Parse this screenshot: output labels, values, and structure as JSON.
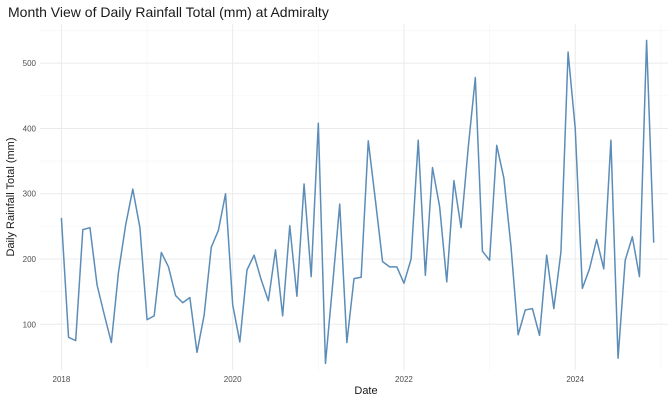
{
  "chart_data": {
    "type": "line",
    "title": "Month View of Daily Rainfall Total (mm) at Admiralty",
    "xlabel": "Date",
    "ylabel": "Daily Rainfall Total (mm)",
    "x_ticks": [
      "2018",
      "2020",
      "2022",
      "2024"
    ],
    "y_ticks": [
      100,
      200,
      300,
      400,
      500
    ],
    "xlim": [
      "2017-10",
      "2025-02"
    ],
    "ylim": [
      30,
      560
    ],
    "grid": true,
    "legend": "none",
    "line_color": "#5b8db8",
    "series": [
      {
        "x": [
          "2018-01",
          "2018-02",
          "2018-03",
          "2018-04",
          "2018-05",
          "2018-06",
          "2018-07",
          "2018-08",
          "2018-09",
          "2018-10",
          "2018-11",
          "2018-12",
          "2019-01",
          "2019-02",
          "2019-03",
          "2019-04",
          "2019-05",
          "2019-06",
          "2019-07",
          "2019-08",
          "2019-09",
          "2019-10",
          "2019-11",
          "2019-12",
          "2020-01",
          "2020-02",
          "2020-03",
          "2020-04",
          "2020-05",
          "2020-06",
          "2020-07",
          "2020-08",
          "2020-09",
          "2020-10",
          "2020-11",
          "2020-12",
          "2021-01",
          "2021-02",
          "2021-03",
          "2021-04",
          "2021-05",
          "2021-06",
          "2021-07",
          "2021-08",
          "2021-09",
          "2021-10",
          "2021-11",
          "2021-12",
          "2022-01",
          "2022-02",
          "2022-03",
          "2022-04",
          "2022-05",
          "2022-06",
          "2022-07",
          "2022-08",
          "2022-09",
          "2022-10",
          "2022-11",
          "2022-12",
          "2023-01",
          "2023-02",
          "2023-03",
          "2023-04",
          "2023-05",
          "2023-06",
          "2023-07",
          "2023-08",
          "2023-09",
          "2023-10",
          "2023-11",
          "2023-12",
          "2024-01",
          "2024-02",
          "2024-03",
          "2024-04",
          "2024-05",
          "2024-06",
          "2024-07",
          "2024-08",
          "2024-09",
          "2024-10",
          "2024-11",
          "2024-12"
        ],
        "values": [
          263,
          80,
          75,
          245,
          248,
          160,
          115,
          72,
          180,
          252,
          307,
          248,
          107,
          113,
          210,
          188,
          144,
          133,
          141,
          57,
          114,
          218,
          244,
          300,
          130,
          73,
          183,
          206,
          168,
          136,
          214,
          113,
          251,
          143,
          315,
          173,
          408,
          40,
          160,
          284,
          72,
          170,
          172,
          381,
          290,
          196,
          188,
          188,
          163,
          200,
          382,
          175,
          340,
          280,
          165,
          320,
          248,
          370,
          478,
          212,
          198,
          374,
          324,
          219,
          84,
          122,
          124,
          83,
          206,
          124,
          211,
          517,
          400,
          155,
          185,
          230,
          185,
          382,
          48,
          198,
          234,
          173,
          535,
          225
        ]
      }
    ]
  }
}
